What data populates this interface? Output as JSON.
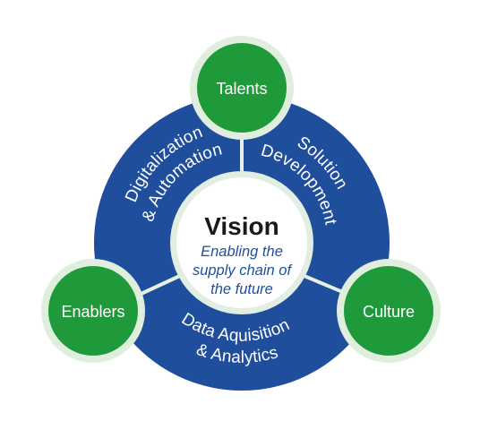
{
  "center": {
    "title": "Vision",
    "subtitle_lines": [
      "Enabling the",
      "supply chain of",
      "the future"
    ]
  },
  "segments": {
    "left": [
      "Digitalization",
      "& Automation"
    ],
    "right": [
      "Solution",
      "Development"
    ],
    "bottom": [
      "Data Aquisition",
      "& Analytics"
    ]
  },
  "nodes": {
    "top": "Talents",
    "left": "Enablers",
    "right": "Culture"
  },
  "colors": {
    "ring": "#1f4f9c",
    "node_fill": "#1f9a3a",
    "node_halo": "#dfeedd",
    "divider": "#e7f0e4",
    "center_text": "#1f4f9c"
  }
}
